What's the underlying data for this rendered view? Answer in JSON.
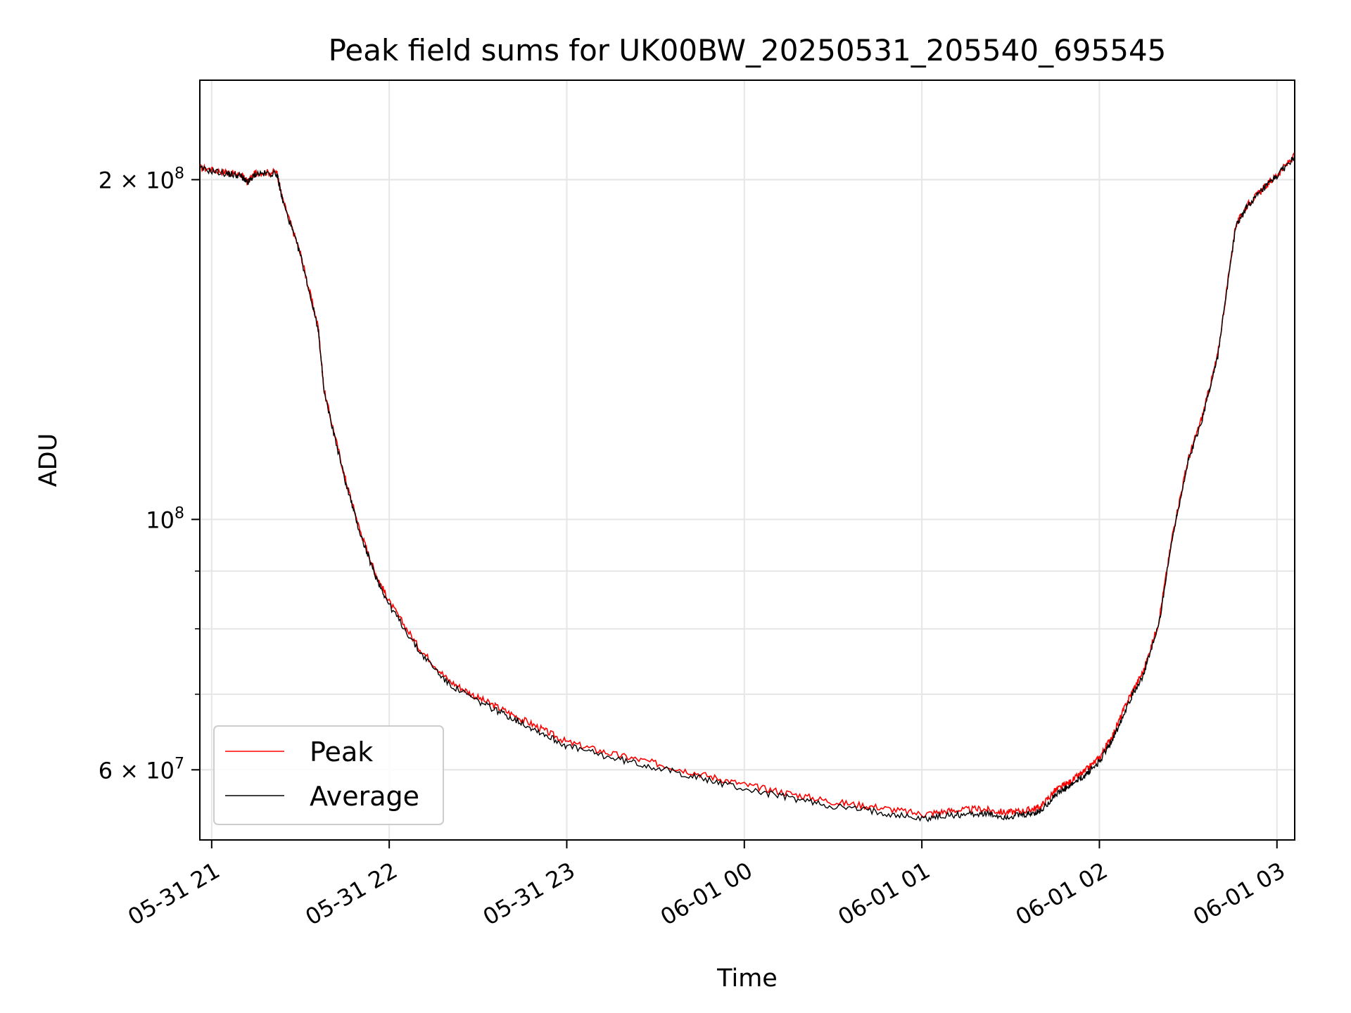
{
  "chart_data": {
    "type": "line",
    "title": "Peak field sums for UK00BW_20250531_205540_695545",
    "xlabel": "Time",
    "ylabel": "ADU",
    "y_scale": "log",
    "grid": true,
    "legend_position": "lower-left",
    "x_tick_labels": [
      "05-31 21",
      "05-31 22",
      "05-31 23",
      "06-01 00",
      "06-01 01",
      "06-01 02",
      "06-01 03"
    ],
    "y_ticks": [
      {
        "value": 200000000,
        "base": "2 × 10",
        "exp": "8"
      },
      {
        "value": 100000000,
        "base": "10",
        "exp": "8"
      },
      {
        "value": 60000000,
        "base": "6 × 10",
        "exp": "7"
      }
    ],
    "xlim": [
      "2025-05-31 20:56",
      "2025-06-01 03:06"
    ],
    "ylim": [
      52000000,
      245000000
    ],
    "series": [
      {
        "name": "Peak",
        "color": "#ff0000",
        "x": [
          "2025-05-31 20:56",
          "2025-05-31 21:05",
          "2025-05-31 21:10",
          "2025-05-31 21:12",
          "2025-05-31 21:15",
          "2025-05-31 21:22",
          "2025-05-31 21:24",
          "2025-05-31 21:30",
          "2025-05-31 21:36",
          "2025-05-31 21:38",
          "2025-05-31 21:45",
          "2025-05-31 21:50",
          "2025-05-31 21:55",
          "2025-05-31 22:00",
          "2025-05-31 22:10",
          "2025-05-31 22:20",
          "2025-05-31 22:30",
          "2025-05-31 22:40",
          "2025-05-31 22:50",
          "2025-05-31 23:00",
          "2025-05-31 23:15",
          "2025-05-31 23:30",
          "2025-05-31 23:45",
          "2025-06-01 00:00",
          "2025-06-01 00:15",
          "2025-06-01 00:30",
          "2025-06-01 00:45",
          "2025-06-01 01:00",
          "2025-06-01 01:10",
          "2025-06-01 01:20",
          "2025-06-01 01:28",
          "2025-06-01 01:35",
          "2025-06-01 01:40",
          "2025-06-01 01:45",
          "2025-06-01 01:50",
          "2025-06-01 01:55",
          "2025-06-01 02:00",
          "2025-06-01 02:05",
          "2025-06-01 02:10",
          "2025-06-01 02:15",
          "2025-06-01 02:20",
          "2025-06-01 02:25",
          "2025-06-01 02:30",
          "2025-06-01 02:35",
          "2025-06-01 02:40",
          "2025-06-01 02:46",
          "2025-06-01 02:50",
          "2025-06-01 02:55",
          "2025-06-01 03:00",
          "2025-06-01 03:06"
        ],
        "y": [
          205000000,
          203000000,
          202000000,
          199000000,
          203000000,
          203000000,
          192000000,
          172000000,
          148000000,
          130000000,
          109000000,
          98000000,
          90000000,
          84500000,
          77000000,
          72000000,
          69500000,
          67500000,
          65500000,
          63500000,
          62000000,
          60800000,
          59500000,
          58200000,
          57200000,
          56200000,
          55600000,
          54800000,
          55200000,
          55400000,
          55000000,
          55200000,
          55600000,
          57500000,
          58500000,
          59800000,
          61500000,
          64800000,
          69500000,
          73500000,
          81000000,
          98000000,
          113000000,
          124000000,
          140000000,
          182000000,
          190000000,
          196000000,
          202000000,
          210000000
        ]
      },
      {
        "name": "Average",
        "color": "#000000",
        "x": [
          "2025-05-31 20:56",
          "2025-05-31 21:05",
          "2025-05-31 21:10",
          "2025-05-31 21:12",
          "2025-05-31 21:15",
          "2025-05-31 21:22",
          "2025-05-31 21:24",
          "2025-05-31 21:30",
          "2025-05-31 21:36",
          "2025-05-31 21:38",
          "2025-05-31 21:45",
          "2025-05-31 21:50",
          "2025-05-31 21:55",
          "2025-05-31 22:00",
          "2025-05-31 22:10",
          "2025-05-31 22:20",
          "2025-05-31 22:30",
          "2025-05-31 22:40",
          "2025-05-31 22:50",
          "2025-05-31 23:00",
          "2025-05-31 23:15",
          "2025-05-31 23:30",
          "2025-05-31 23:45",
          "2025-06-01 00:00",
          "2025-06-01 00:15",
          "2025-06-01 00:30",
          "2025-06-01 00:45",
          "2025-06-01 01:00",
          "2025-06-01 01:10",
          "2025-06-01 01:20",
          "2025-06-01 01:28",
          "2025-06-01 01:35",
          "2025-06-01 01:40",
          "2025-06-01 01:45",
          "2025-06-01 01:50",
          "2025-06-01 01:55",
          "2025-06-01 02:00",
          "2025-06-01 02:05",
          "2025-06-01 02:10",
          "2025-06-01 02:15",
          "2025-06-01 02:20",
          "2025-06-01 02:25",
          "2025-06-01 02:30",
          "2025-06-01 02:35",
          "2025-06-01 02:40",
          "2025-06-01 02:46",
          "2025-06-01 02:50",
          "2025-06-01 02:55",
          "2025-06-01 03:00",
          "2025-06-01 03:06"
        ],
        "y": [
          204500000,
          202500000,
          201500000,
          198500000,
          202500000,
          202500000,
          191500000,
          171500000,
          147500000,
          129500000,
          108500000,
          97500000,
          89500000,
          84000000,
          76500000,
          71500000,
          69000000,
          67000000,
          65000000,
          63000000,
          61500000,
          60300000,
          59000000,
          57700000,
          56700000,
          55700000,
          55100000,
          54300000,
          54700000,
          54900000,
          54500000,
          54700000,
          55100000,
          57000000,
          58000000,
          59300000,
          61000000,
          64300000,
          69000000,
          73000000,
          80500000,
          97500000,
          112500000,
          123500000,
          139500000,
          181500000,
          189500000,
          195500000,
          201500000,
          209500000
        ]
      }
    ]
  }
}
